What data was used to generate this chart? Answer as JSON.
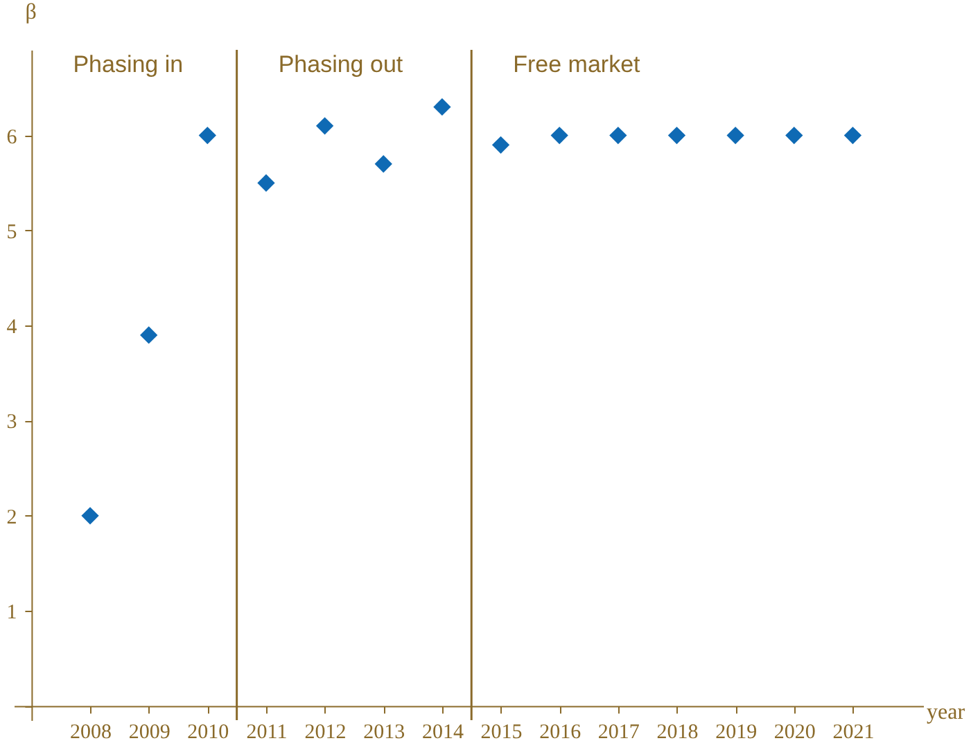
{
  "chart_data": {
    "type": "scatter",
    "xlabel": "year",
    "ylabel": "β",
    "x": [
      2008,
      2009,
      2010,
      2011,
      2012,
      2013,
      2014,
      2015,
      2016,
      2017,
      2018,
      2019,
      2020,
      2021
    ],
    "series": [
      {
        "color": "#0f6ab4",
        "values": [
          2,
          3.9,
          6,
          5.5,
          6.1,
          5.7,
          6.3,
          5.9,
          6,
          6,
          6,
          6,
          6,
          6
        ]
      }
    ],
    "marker": "diamond",
    "grid": false,
    "xlim": [
      2006.7,
      2022.2
    ],
    "xticks": [
      2008,
      2009,
      2010,
      2011,
      2012,
      2013,
      2014,
      2015,
      2016,
      2017,
      2018,
      2019,
      2020,
      2021
    ],
    "ylim": [
      -0.15,
      6.9
    ],
    "yticks": [
      {
        "value": 0,
        "label": null
      },
      1,
      2,
      3,
      4,
      5,
      6
    ],
    "ref_lines": [
      {
        "axis": "x",
        "value": 2010.5,
        "color": "#8a6a2a"
      },
      {
        "axis": "x",
        "value": 2014.5,
        "color": "#8a6a2a"
      }
    ],
    "annotations": [
      "Phasing in",
      "Phasing out",
      "Free market"
    ]
  }
}
